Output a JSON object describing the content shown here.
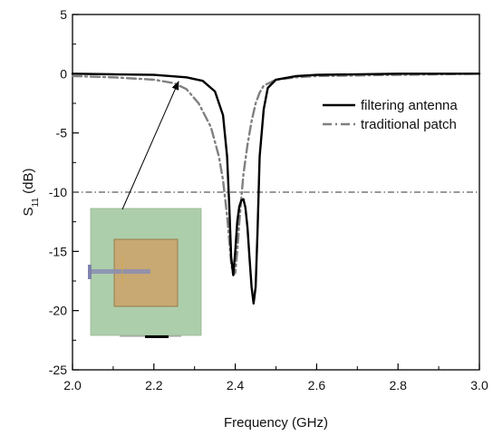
{
  "chart_data": {
    "type": "line",
    "xlabel": "Frequency (GHz)",
    "ylabel": {
      "base": "S",
      "sub": "11",
      "suffix": " (dB)"
    },
    "xlim": [
      2.0,
      3.0
    ],
    "ylim": [
      -25,
      5
    ],
    "xticks": [
      "2.0",
      "2.2",
      "2.4",
      "2.6",
      "2.8",
      "3.0"
    ],
    "yticks": [
      "5",
      "0",
      "-5",
      "-10",
      "-15",
      "-20",
      "-25"
    ],
    "grid": false,
    "legend_position": "right",
    "reference_line": {
      "y": -10,
      "style": "dash-dot"
    },
    "series": [
      {
        "name": "filtering antenna",
        "color": "#000000",
        "style": "solid",
        "x": [
          2.0,
          2.1,
          2.2,
          2.28,
          2.32,
          2.35,
          2.37,
          2.38,
          2.385,
          2.39,
          2.395,
          2.4,
          2.405,
          2.41,
          2.415,
          2.42,
          2.425,
          2.43,
          2.435,
          2.44,
          2.445,
          2.45,
          2.455,
          2.46,
          2.47,
          2.48,
          2.5,
          2.55,
          2.6,
          2.8,
          3.0
        ],
        "y": [
          0,
          -0.05,
          -0.1,
          -0.3,
          -0.6,
          -1.5,
          -3.5,
          -7,
          -11,
          -15.5,
          -17,
          -15,
          -12.5,
          -11.2,
          -10.7,
          -10.6,
          -11.3,
          -13,
          -15.5,
          -18,
          -19.4,
          -18,
          -13,
          -7,
          -3,
          -1.2,
          -0.5,
          -0.2,
          -0.1,
          0,
          0
        ]
      },
      {
        "name": "traditional patch",
        "color": "#808080",
        "style": "dash-dot",
        "x": [
          2.0,
          2.1,
          2.2,
          2.25,
          2.28,
          2.31,
          2.34,
          2.36,
          2.37,
          2.38,
          2.385,
          2.39,
          2.395,
          2.4,
          2.405,
          2.41,
          2.415,
          2.42,
          2.43,
          2.44,
          2.45,
          2.46,
          2.47,
          2.5,
          2.55,
          2.6,
          2.8,
          3.0
        ],
        "y": [
          -0.2,
          -0.3,
          -0.5,
          -0.8,
          -1.3,
          -2.5,
          -4.5,
          -7,
          -9,
          -12,
          -14,
          -16,
          -17,
          -16.8,
          -15,
          -12.5,
          -10.5,
          -8.5,
          -6,
          -4,
          -2.5,
          -1.6,
          -1.0,
          -0.5,
          -0.3,
          -0.2,
          -0.1,
          0
        ]
      }
    ]
  },
  "inset": {
    "description_icon": "patch-antenna-layout-icon",
    "colors": {
      "substrate": "#a9cca6",
      "patch": "#c8a873",
      "feed": "#8a8db4",
      "scalebar": "#000000"
    }
  }
}
